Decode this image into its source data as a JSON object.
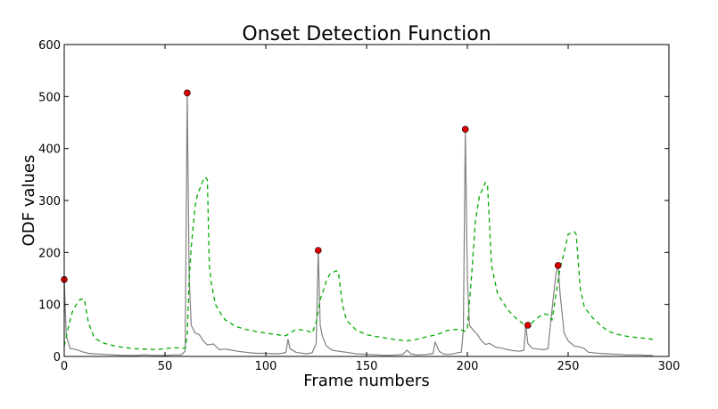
{
  "chart_data": {
    "type": "line",
    "title": "Onset Detection Function",
    "xlabel": "Frame numbers",
    "ylabel": "ODF values",
    "xlim": [
      0,
      300
    ],
    "ylim": [
      0,
      600
    ],
    "xticks": [
      "0",
      "50",
      "100",
      "150",
      "200",
      "250",
      "300"
    ],
    "yticks": [
      "0",
      "100",
      "200",
      "300",
      "400",
      "500",
      "600"
    ],
    "grid": false,
    "legend": "none",
    "colors": {
      "odf": "#808080",
      "threshold": "#00aa00",
      "onset": "#dd0000"
    },
    "series": [
      {
        "style": "solid",
        "x": [
          0,
          1,
          3,
          5,
          7,
          9,
          12,
          15,
          20,
          25,
          30,
          35,
          40,
          45,
          50,
          55,
          58,
          60,
          61,
          62,
          63,
          65,
          67,
          69,
          71,
          74,
          77,
          80,
          83,
          86,
          90,
          95,
          100,
          105,
          108,
          110,
          111,
          112,
          115,
          120,
          123,
          125,
          126,
          127,
          128,
          130,
          133,
          136,
          140,
          145,
          150,
          155,
          160,
          165,
          168,
          170,
          172,
          175,
          180,
          183,
          184,
          186,
          188,
          190,
          193,
          195,
          197,
          198,
          199,
          200,
          201,
          203,
          205,
          207,
          209,
          211,
          214,
          217,
          220,
          223,
          226,
          228,
          229,
          230,
          232,
          235,
          238,
          240,
          242,
          244,
          245,
          246,
          248,
          250,
          253,
          256,
          258,
          260,
          265,
          270,
          275,
          280,
          285,
          290,
          292
        ],
        "y": [
          148,
          40,
          15,
          14,
          12,
          9,
          6,
          5,
          4,
          3,
          2,
          2,
          3,
          2,
          2,
          3,
          3,
          10,
          507,
          150,
          60,
          45,
          42,
          30,
          22,
          24,
          13,
          14,
          12,
          10,
          8,
          6,
          6,
          5,
          6,
          8,
          33,
          15,
          8,
          5,
          7,
          25,
          204,
          60,
          40,
          20,
          12,
          10,
          8,
          5,
          4,
          3,
          2,
          3,
          4,
          12,
          5,
          3,
          4,
          6,
          28,
          10,
          5,
          4,
          5,
          7,
          8,
          50,
          437,
          150,
          60,
          50,
          42,
          30,
          23,
          25,
          18,
          16,
          13,
          11,
          10,
          12,
          60,
          25,
          16,
          14,
          13,
          15,
          90,
          160,
          175,
          120,
          45,
          30,
          20,
          18,
          15,
          8,
          6,
          5,
          4,
          3,
          3,
          2,
          2
        ]
      },
      {
        "style": "dashed",
        "x": [
          0,
          2,
          4,
          6,
          8,
          10,
          12,
          15,
          20,
          25,
          30,
          35,
          40,
          45,
          50,
          55,
          58,
          60,
          61,
          62,
          63,
          64,
          65,
          66,
          67,
          68,
          69,
          70,
          71,
          72,
          73,
          75,
          78,
          80,
          85,
          90,
          95,
          100,
          105,
          110,
          112,
          115,
          120,
          123,
          125,
          127,
          128,
          130,
          132,
          134,
          135,
          136,
          138,
          140,
          145,
          150,
          155,
          160,
          165,
          170,
          175,
          180,
          185,
          190,
          195,
          198,
          199,
          200,
          202,
          204,
          206,
          208,
          209,
          210,
          212,
          215,
          220,
          225,
          228,
          230,
          232,
          235,
          238,
          240,
          242,
          244,
          246,
          248,
          250,
          252,
          253,
          254,
          256,
          258,
          262,
          266,
          270,
          275,
          280,
          285,
          290,
          292
        ],
        "y": [
          20,
          55,
          85,
          100,
          110,
          110,
          65,
          35,
          25,
          20,
          17,
          15,
          14,
          13,
          15,
          17,
          16,
          16,
          40,
          150,
          210,
          250,
          290,
          310,
          320,
          330,
          340,
          345,
          340,
          175,
          140,
          100,
          80,
          70,
          58,
          52,
          48,
          45,
          42,
          40,
          45,
          52,
          50,
          45,
          65,
          110,
          120,
          145,
          160,
          163,
          165,
          162,
          100,
          70,
          50,
          42,
          38,
          35,
          32,
          30,
          33,
          38,
          42,
          50,
          52,
          50,
          48,
          55,
          150,
          260,
          310,
          325,
          335,
          330,
          175,
          120,
          90,
          70,
          62,
          55,
          65,
          75,
          82,
          80,
          70,
          120,
          170,
          200,
          235,
          238,
          240,
          235,
          130,
          95,
          75,
          60,
          48,
          42,
          38,
          36,
          34,
          33
        ]
      }
    ],
    "onsets": {
      "x": [
        0,
        61,
        126,
        199,
        230,
        245
      ],
      "y": [
        148,
        507,
        204,
        437,
        60,
        175
      ]
    }
  }
}
